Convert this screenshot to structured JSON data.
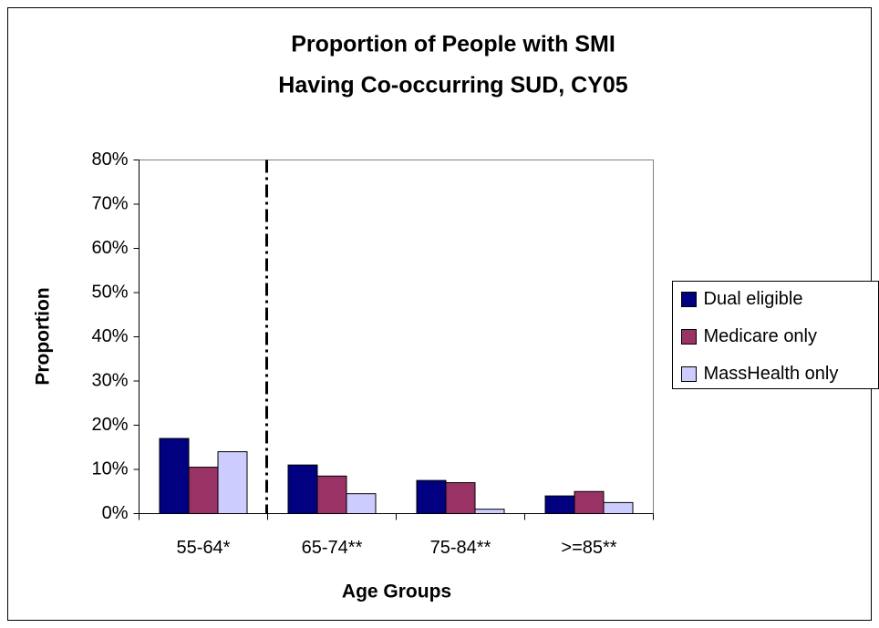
{
  "chart_data": {
    "type": "bar",
    "title": [
      "Proportion of People with SMI",
      "Having Co-occurring SUD, CY05"
    ],
    "x_label": "Age Groups",
    "y_label": "Proportion",
    "categories": [
      "55-64*",
      "65-74**",
      "75-84**",
      ">=85**"
    ],
    "series": [
      {
        "name": "Dual eligible",
        "color": "#000080",
        "values": [
          17,
          11,
          7.5,
          4
        ]
      },
      {
        "name": "Medicare only",
        "color": "#993366",
        "values": [
          10.5,
          8.5,
          7,
          5
        ]
      },
      {
        "name": "MassHealth only",
        "color": "#ccccff",
        "values": [
          14,
          4.5,
          1,
          2.5
        ]
      }
    ],
    "ylim": [
      0,
      80
    ],
    "yticks": [
      {
        "value": 0,
        "label": "0%"
      },
      {
        "value": 10,
        "label": "10%"
      },
      {
        "value": 20,
        "label": "20%"
      },
      {
        "value": 30,
        "label": "30%"
      },
      {
        "value": 40,
        "label": "40%"
      },
      {
        "value": 50,
        "label": "50%"
      },
      {
        "value": 60,
        "label": "60%"
      },
      {
        "value": 70,
        "label": "70%"
      },
      {
        "value": 80,
        "label": "80%"
      }
    ],
    "grid": false,
    "legend": "right"
  }
}
